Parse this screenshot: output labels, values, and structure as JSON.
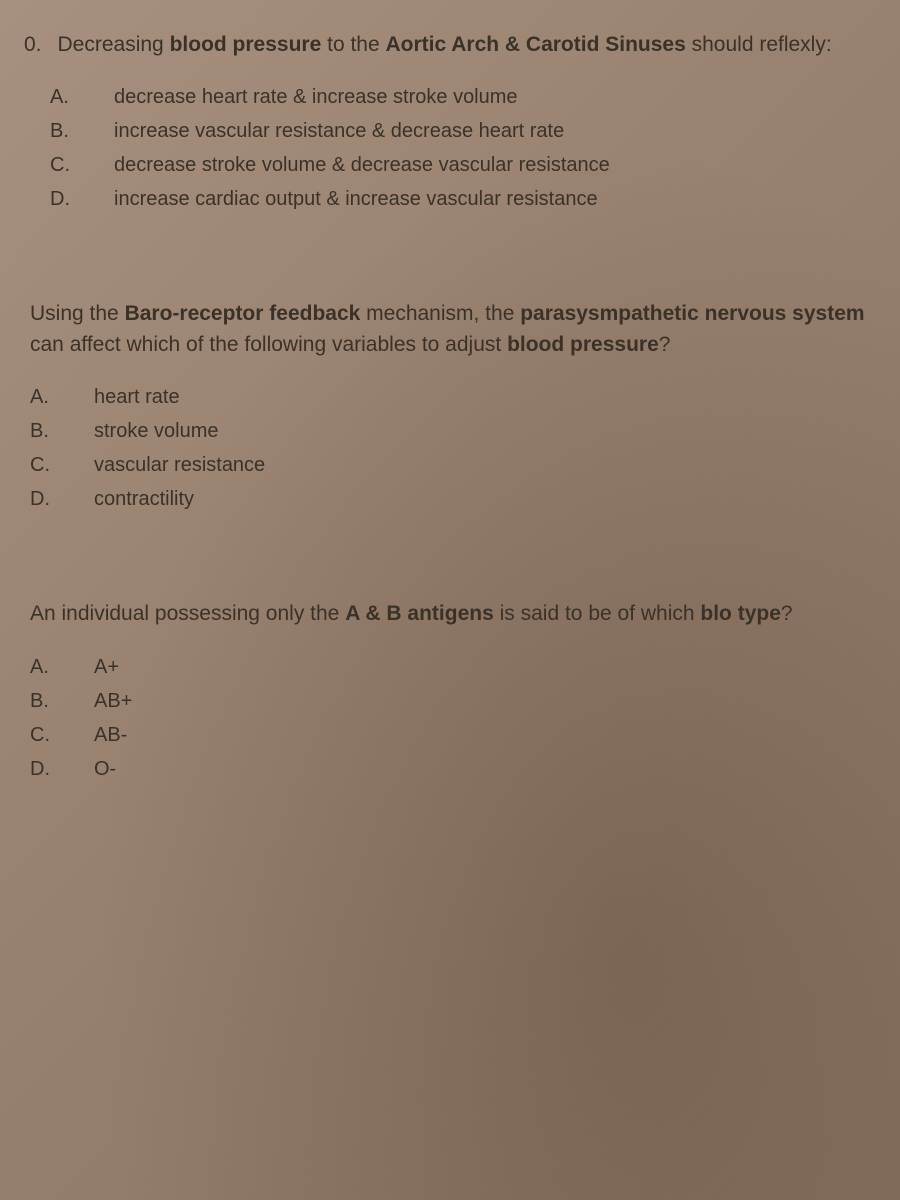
{
  "questions": [
    {
      "number": "0.",
      "text_parts": [
        {
          "t": "Decreasing ",
          "b": false
        },
        {
          "t": "blood pressure",
          "b": true
        },
        {
          "t": " to the ",
          "b": false
        },
        {
          "t": "Aortic Arch & Carotid Sinuses",
          "b": true
        },
        {
          "t": " should reflexly:",
          "b": false
        }
      ],
      "options": [
        {
          "letter": "A.",
          "text": "decrease heart rate & increase stroke volume"
        },
        {
          "letter": "B.",
          "text": "increase vascular resistance & decrease heart rate"
        },
        {
          "letter": "C.",
          "text": "decrease stroke volume & decrease vascular resistance"
        },
        {
          "letter": "D.",
          "text": "increase cardiac output & increase vascular resistance"
        }
      ],
      "indent": true
    },
    {
      "number": "",
      "text_parts": [
        {
          "t": "Using the ",
          "b": false
        },
        {
          "t": "Baro-receptor feedback",
          "b": true
        },
        {
          "t": " mechanism, the ",
          "b": false
        },
        {
          "t": "parasysmpathetic nervous system",
          "b": true
        },
        {
          "t": " can affect which of the following variables to adjust ",
          "b": false
        },
        {
          "t": "blood pressure",
          "b": true
        },
        {
          "t": "?",
          "b": false
        }
      ],
      "options": [
        {
          "letter": "A.",
          "text": "heart rate"
        },
        {
          "letter": "B.",
          "text": "stroke volume"
        },
        {
          "letter": "C.",
          "text": "vascular resistance"
        },
        {
          "letter": "D.",
          "text": "contractility"
        }
      ],
      "indent": false
    },
    {
      "number": "",
      "text_parts": [
        {
          "t": "An individual possessing only the ",
          "b": false
        },
        {
          "t": "A & B antigens",
          "b": true
        },
        {
          "t": " is said to be of which ",
          "b": false
        },
        {
          "t": "blo",
          "b": true
        },
        {
          "t": " ",
          "b": false
        },
        {
          "t": "type",
          "b": true
        },
        {
          "t": "?",
          "b": false
        }
      ],
      "options": [
        {
          "letter": "A.",
          "text": "A+"
        },
        {
          "letter": "B.",
          "text": "AB+"
        },
        {
          "letter": "C.",
          "text": "AB-"
        },
        {
          "letter": "D.",
          "text": "O-"
        }
      ],
      "indent": false
    }
  ],
  "colors": {
    "background_top": "#a89080",
    "background_bottom": "#8a7260",
    "text": "#3a3228"
  },
  "fontsize_question": 21,
  "fontsize_option": 20
}
